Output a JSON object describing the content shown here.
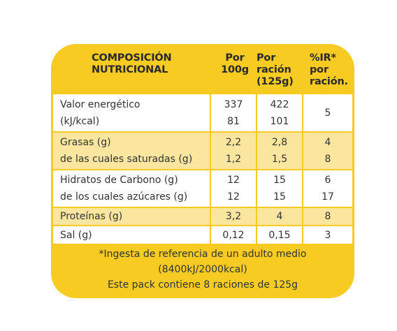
{
  "headers": {
    "col1": [
      "COMPOSICIÓN",
      "NUTRICIONAL"
    ],
    "col2": [
      "Por",
      "100g"
    ],
    "col3": [
      "Por",
      "ración",
      "(125g)"
    ],
    "col4": [
      "%IR*",
      "por",
      "ración."
    ]
  },
  "rows": [
    {
      "labels": [
        "Valor energético",
        "(kJ/kcal)"
      ],
      "per100": [
        "337",
        "81"
      ],
      "perServing": [
        "422",
        "101"
      ],
      "ir": [
        "5"
      ]
    },
    {
      "labels": [
        "Grasas (g)",
        "de las cuales saturadas (g)"
      ],
      "per100": [
        "2,2",
        "1,2"
      ],
      "perServing": [
        "2,8",
        "1,5"
      ],
      "ir": [
        "4",
        "8"
      ]
    },
    {
      "labels": [
        "Hidratos de Carbono (g)",
        "de los cuales azúcares (g)"
      ],
      "per100": [
        "12",
        "12"
      ],
      "perServing": [
        "15",
        "15"
      ],
      "ir": [
        "6",
        "17"
      ]
    },
    {
      "labels": [
        "Proteínas (g)"
      ],
      "per100": [
        "3,2"
      ],
      "perServing": [
        "4"
      ],
      "ir": [
        "8"
      ]
    },
    {
      "labels": [
        "Sal (g)"
      ],
      "per100": [
        "0,12"
      ],
      "perServing": [
        "0,15"
      ],
      "ir": [
        "3"
      ]
    }
  ],
  "footnotes": [
    "*Ingesta de referencia de un adulto medio",
    "(8400kJ/2000kcal)",
    "Este pack contiene 8 raciones de 125g"
  ],
  "colors": {
    "card": "#F7CB22",
    "cream": "#FBE6A0",
    "white": "#FFFFFF"
  }
}
